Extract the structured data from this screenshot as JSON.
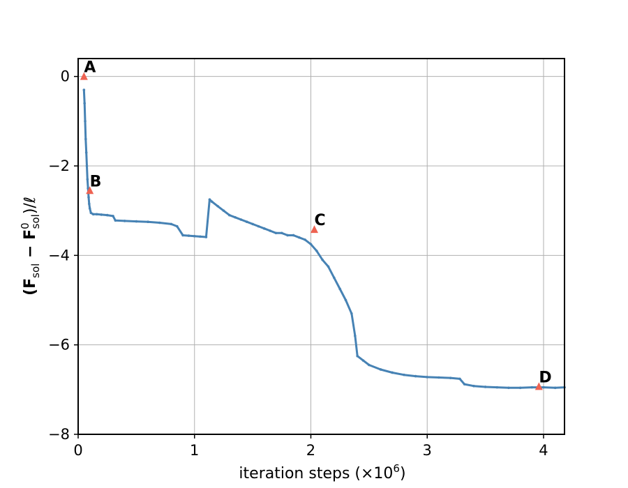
{
  "chart_data": {
    "type": "scatter",
    "title": "",
    "xlabel": {
      "text": "iteration steps (×10",
      "sup": "6",
      "suffix": ")"
    },
    "ylabel": {
      "parts": [
        "(F",
        "sol",
        " − F",
        "0",
        "sol",
        ")/ℓ"
      ]
    },
    "xlim": [
      0,
      4.18
    ],
    "ylim": [
      -8,
      0.4
    ],
    "xticks": [
      0,
      1,
      2,
      3,
      4
    ],
    "yticks": [
      -8,
      -6,
      -4,
      -2,
      0
    ],
    "xtick_labels": [
      "0",
      "1",
      "2",
      "3",
      "4"
    ],
    "ytick_labels": [
      "−8",
      "−6",
      "−4",
      "−2",
      "0"
    ],
    "grid": true,
    "colors": {
      "series": "#4682b4",
      "markers": "#ee6352",
      "grid": "#b0b0b0",
      "axes": "#000000"
    },
    "series": [
      {
        "x": [
          0.05,
          0.055,
          0.06,
          0.065,
          0.07,
          0.075,
          0.08,
          0.085,
          0.09,
          0.095,
          0.1,
          0.11,
          0.13,
          0.16,
          0.2,
          0.25,
          0.3,
          0.32,
          0.4,
          0.5,
          0.6,
          0.7,
          0.8,
          0.85,
          0.9,
          0.95,
          1.0,
          1.05,
          1.1,
          1.13,
          1.15,
          1.2,
          1.25,
          1.3,
          1.35,
          1.4,
          1.45,
          1.5,
          1.55,
          1.6,
          1.65,
          1.7,
          1.75,
          1.8,
          1.85,
          1.9,
          1.95,
          2.0,
          2.05,
          2.1,
          2.15,
          2.2,
          2.25,
          2.3,
          2.35,
          2.38,
          2.4,
          2.45,
          2.5,
          2.6,
          2.7,
          2.8,
          2.9,
          3.0,
          3.1,
          3.2,
          3.28,
          3.32,
          3.4,
          3.5,
          3.6,
          3.7,
          3.8,
          3.9,
          4.0,
          4.1,
          4.18
        ],
        "y": [
          -0.3,
          -0.6,
          -1.0,
          -1.4,
          -1.7,
          -2.0,
          -2.3,
          -2.5,
          -2.7,
          -2.85,
          -2.95,
          -3.05,
          -3.08,
          -3.08,
          -3.09,
          -3.1,
          -3.12,
          -3.22,
          -3.23,
          -3.24,
          -3.25,
          -3.27,
          -3.3,
          -3.35,
          -3.55,
          -3.56,
          -3.57,
          -3.58,
          -3.59,
          -2.75,
          -2.8,
          -2.9,
          -3.0,
          -3.1,
          -3.15,
          -3.2,
          -3.25,
          -3.3,
          -3.35,
          -3.4,
          -3.45,
          -3.5,
          -3.5,
          -3.55,
          -3.55,
          -3.6,
          -3.65,
          -3.75,
          -3.9,
          -4.1,
          -4.25,
          -4.5,
          -4.75,
          -5.0,
          -5.3,
          -5.8,
          -6.25,
          -6.35,
          -6.45,
          -6.55,
          -6.62,
          -6.67,
          -6.7,
          -6.72,
          -6.73,
          -6.74,
          -6.76,
          -6.88,
          -6.92,
          -6.94,
          -6.95,
          -6.96,
          -6.96,
          -6.95,
          -6.95,
          -6.96,
          -6.95
        ]
      }
    ],
    "annotations": [
      {
        "label": "A",
        "x": 0.05,
        "y": 0.0
      },
      {
        "label": "B",
        "x": 0.1,
        "y": -2.55
      },
      {
        "label": "C",
        "x": 2.03,
        "y": -3.42
      },
      {
        "label": "D",
        "x": 3.96,
        "y": -6.93
      }
    ]
  }
}
